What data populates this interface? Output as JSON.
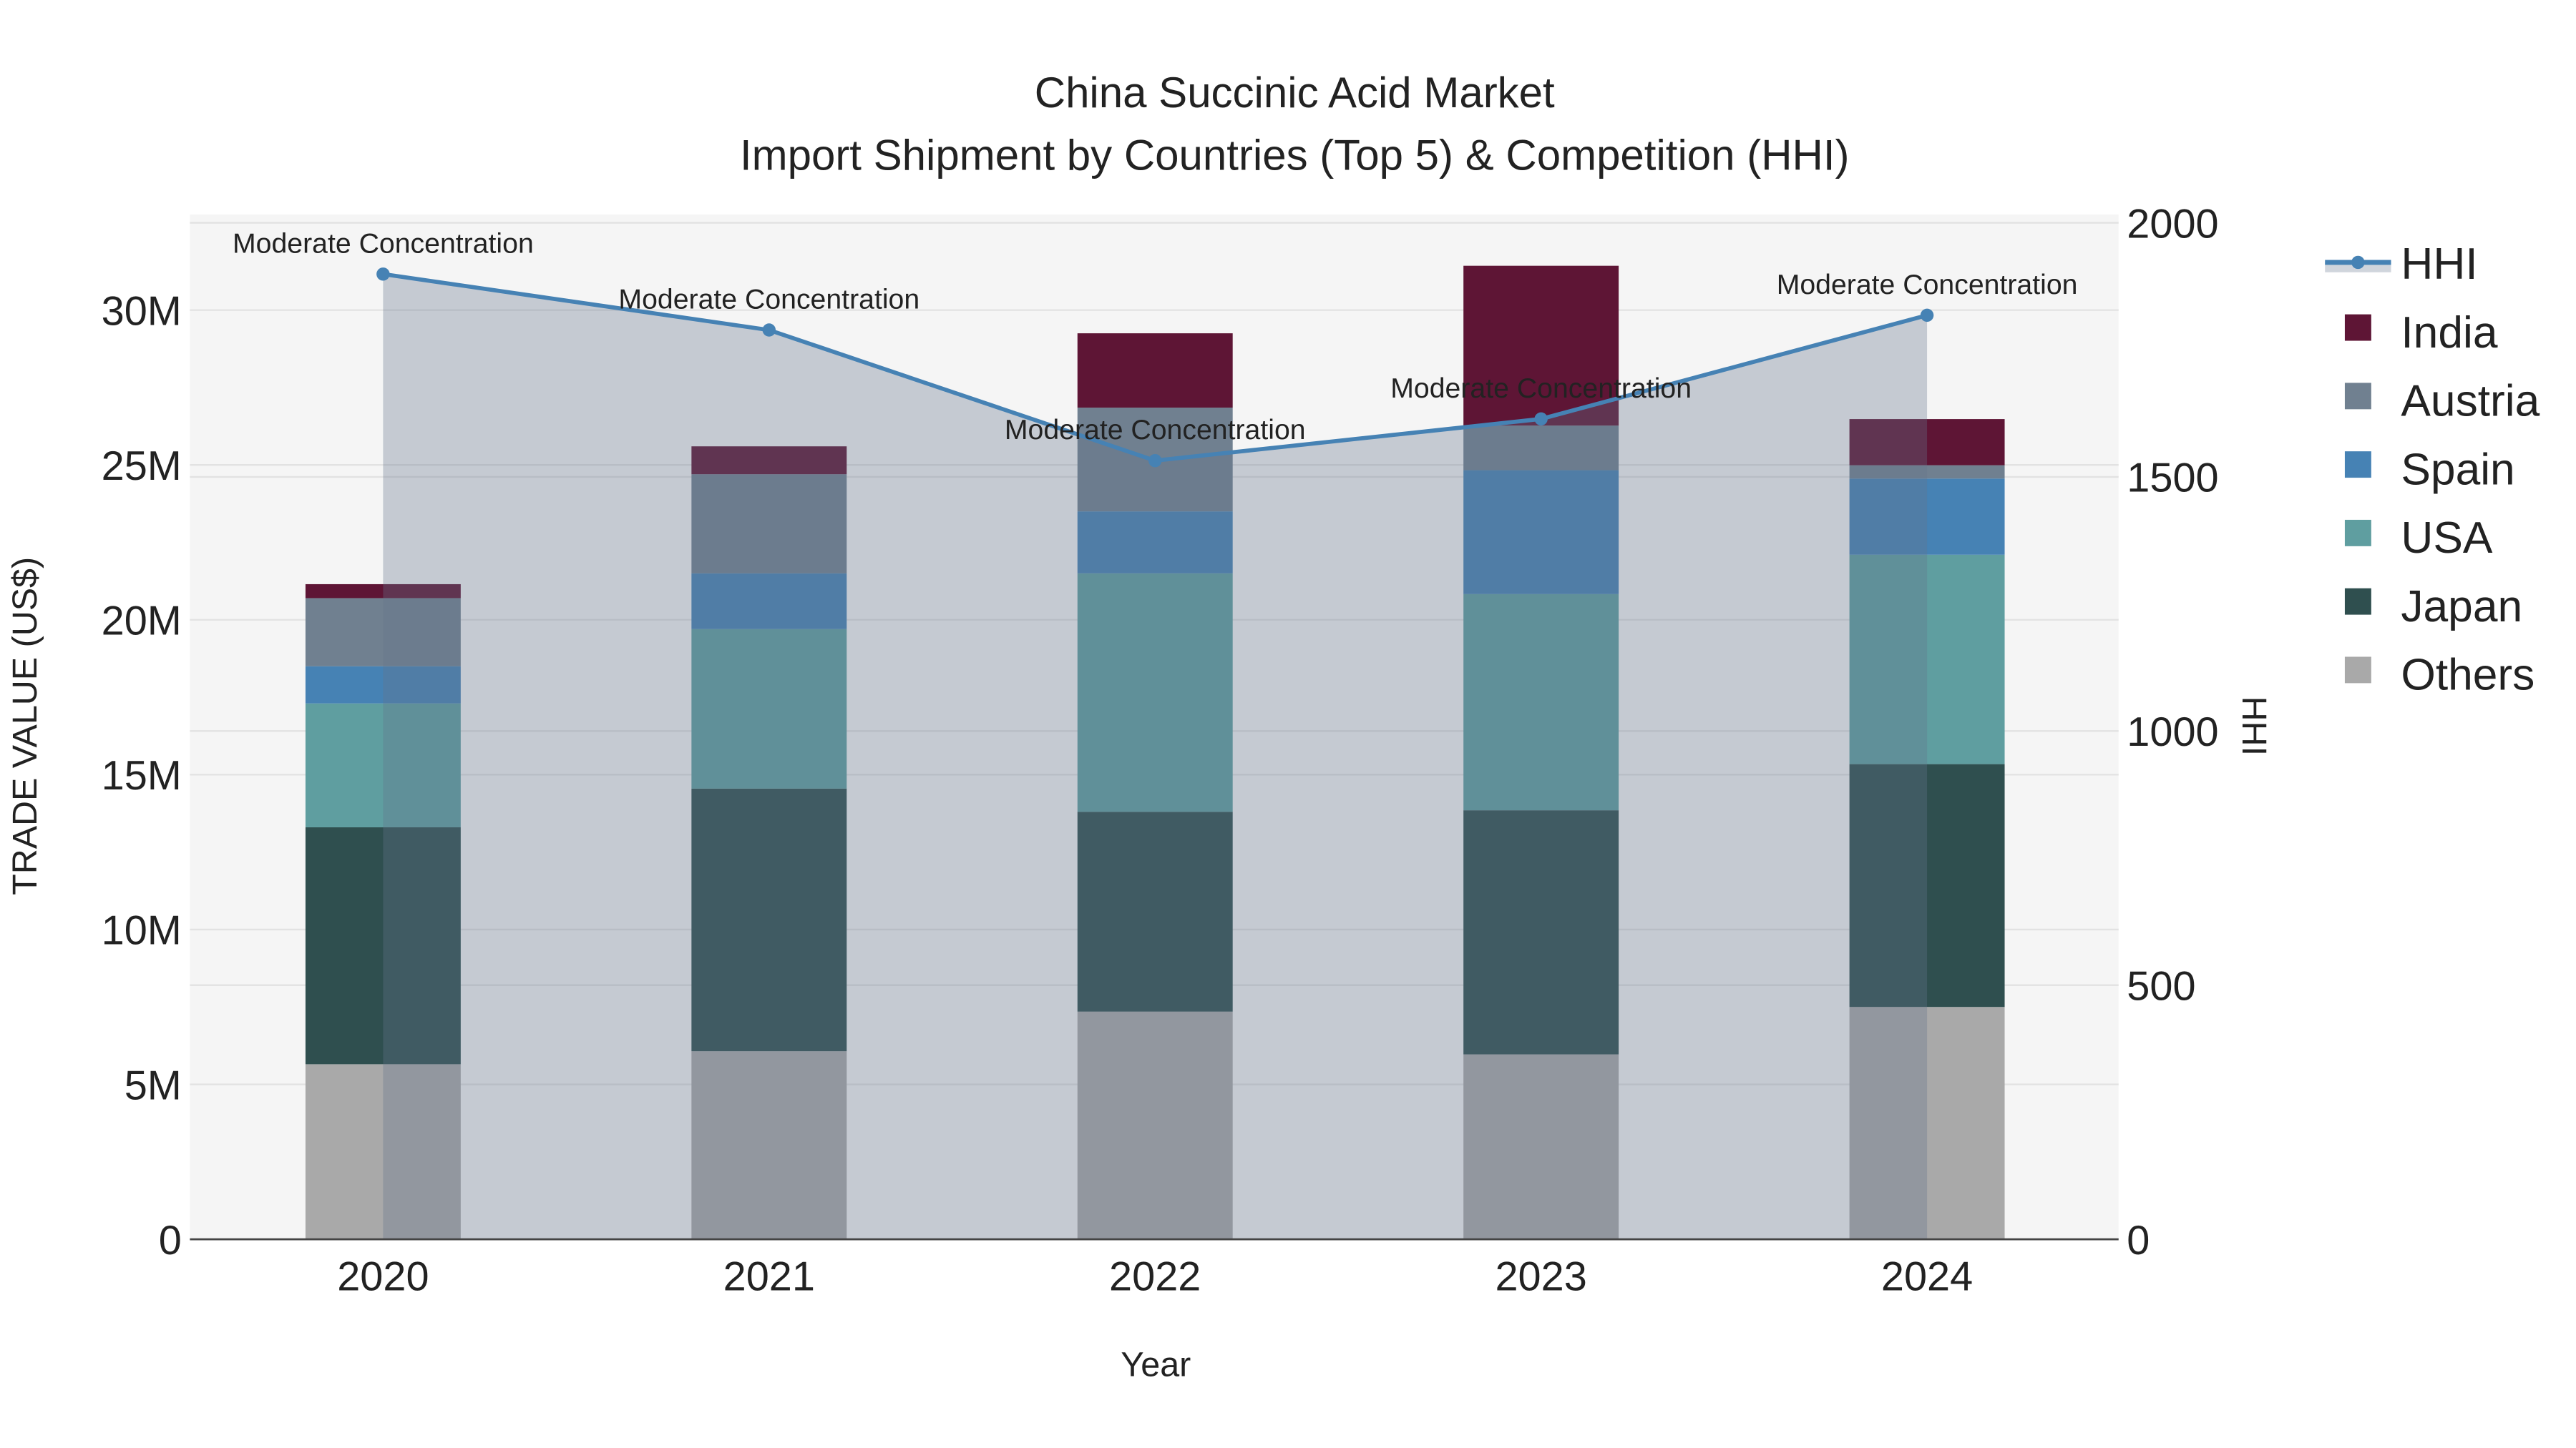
{
  "chart_data": {
    "type": "bar",
    "title": "China Succinic Acid Market",
    "subtitle": "Import Shipment by Countries (Top 5) & Competition (HHI)",
    "xlabel": "Year",
    "ylabel": "TRADE VALUE (US$)",
    "y2label": "HHI",
    "categories": [
      "2020",
      "2021",
      "2022",
      "2023",
      "2024"
    ],
    "ylim": [
      0,
      33000000
    ],
    "y2lim": [
      0,
      2020
    ],
    "yticks": [
      0,
      5000000,
      10000000,
      15000000,
      20000000,
      25000000,
      30000000
    ],
    "ytick_labels": [
      "0",
      "5M",
      "10M",
      "15M",
      "20M",
      "25M",
      "30M"
    ],
    "y2ticks": [
      0,
      500,
      1000,
      1500,
      2000
    ],
    "y2tick_labels": [
      "0",
      "500",
      "1000",
      "1500",
      "2000"
    ],
    "grid": true,
    "legend_position": "right",
    "stack_order": [
      "Others",
      "Japan",
      "USA",
      "Spain",
      "Austria",
      "India"
    ],
    "series": [
      {
        "name": "India",
        "color": "#5e1535",
        "values": [
          450000,
          900000,
          2400000,
          5160000,
          1490000
        ]
      },
      {
        "name": "Austria",
        "color": "#708090",
        "values": [
          2200000,
          3200000,
          3350000,
          1440000,
          430000
        ]
      },
      {
        "name": "Spain",
        "color": "#4682b4",
        "values": [
          1200000,
          1800000,
          2000000,
          4000000,
          2460000
        ]
      },
      {
        "name": "USA",
        "color": "#5f9ea0",
        "values": [
          4000000,
          5150000,
          7700000,
          6980000,
          6760000
        ]
      },
      {
        "name": "Japan",
        "color": "#2f4f4f",
        "values": [
          7650000,
          8480000,
          6450000,
          7880000,
          7840000
        ]
      },
      {
        "name": "Others",
        "color": "#a9a9a9",
        "values": [
          5650000,
          6070000,
          7350000,
          5970000,
          7500000
        ]
      }
    ],
    "hhi": {
      "name": "HHI",
      "color": "#4682b4",
      "values": [
        1899,
        1789,
        1532,
        1614,
        1818
      ],
      "annotations": [
        "Moderate Concentration",
        "Moderate Concentration",
        "Moderate Concentration",
        "Moderate Concentration",
        "Moderate Concentration"
      ]
    },
    "legend": [
      "HHI",
      "India",
      "Austria",
      "Spain",
      "USA",
      "Japan",
      "Others"
    ]
  }
}
